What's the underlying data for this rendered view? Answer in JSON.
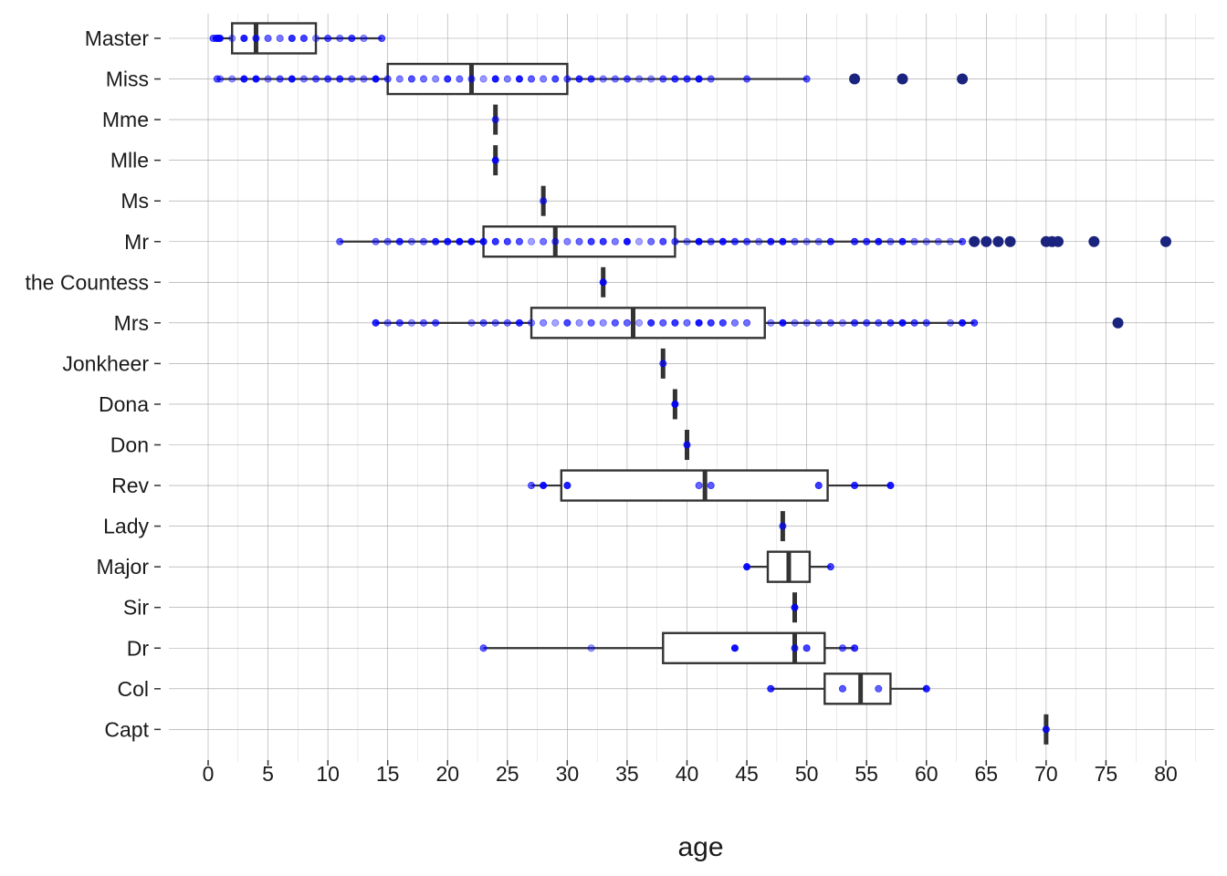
{
  "chart_data": {
    "type": "box",
    "orientation": "horizontal",
    "title": "",
    "xlabel": "age",
    "ylabel": "",
    "xlim": [
      0,
      80
    ],
    "xticks": [
      0,
      5,
      10,
      15,
      20,
      25,
      30,
      35,
      40,
      45,
      50,
      55,
      60,
      65,
      70,
      75,
      80
    ],
    "grid": true,
    "legend": "none",
    "colors": {
      "box": "#333333",
      "points": "#0000ff",
      "outliers": "#1a237e",
      "grid": "#9e9e9e"
    },
    "groups": [
      {
        "name": "Master",
        "q1": 2,
        "median": 4,
        "q3": 9,
        "whisker_low": 0.42,
        "whisker_high": 14.5,
        "points": [
          0.42,
          0.67,
          0.75,
          0.83,
          0.92,
          1,
          2,
          3,
          4,
          5,
          6,
          7,
          8,
          9,
          10,
          11,
          12,
          13,
          14.5
        ],
        "outliers": []
      },
      {
        "name": "Miss",
        "q1": 15,
        "median": 22,
        "q3": 30,
        "whisker_low": 0.75,
        "whisker_high": 50,
        "points": [
          0.75,
          1,
          2,
          3,
          4,
          5,
          6,
          7,
          8,
          9,
          10,
          11,
          12,
          13,
          14,
          15,
          16,
          17,
          18,
          19,
          20,
          21,
          22,
          23,
          24,
          25,
          26,
          27,
          28,
          29,
          30,
          31,
          32,
          33,
          34,
          35,
          36,
          37,
          38,
          39,
          40,
          41,
          42,
          45,
          50
        ],
        "outliers": [
          54,
          58,
          63
        ]
      },
      {
        "name": "Mme",
        "q1": 24,
        "median": 24,
        "q3": 24,
        "whisker_low": 24,
        "whisker_high": 24,
        "points": [
          24
        ],
        "outliers": []
      },
      {
        "name": "Mlle",
        "q1": 24,
        "median": 24,
        "q3": 24,
        "whisker_low": 24,
        "whisker_high": 24,
        "points": [
          24
        ],
        "outliers": []
      },
      {
        "name": "Ms",
        "q1": 28,
        "median": 28,
        "q3": 28,
        "whisker_low": 28,
        "whisker_high": 28,
        "points": [
          28
        ],
        "outliers": []
      },
      {
        "name": "Mr",
        "q1": 23,
        "median": 29,
        "q3": 39,
        "whisker_low": 11,
        "whisker_high": 63,
        "points": [
          11,
          14,
          15,
          16,
          17,
          18,
          19,
          20,
          21,
          22,
          23,
          24,
          25,
          26,
          27,
          28,
          29,
          30,
          31,
          32,
          33,
          34,
          35,
          36,
          37,
          38,
          39,
          40,
          41,
          42,
          43,
          44,
          45,
          46,
          47,
          48,
          49,
          50,
          51,
          52,
          54,
          55,
          56,
          57,
          58,
          59,
          60,
          61,
          62,
          63
        ],
        "outliers": [
          64,
          65,
          66,
          67,
          70,
          70.5,
          71,
          74,
          80
        ]
      },
      {
        "name": "the Countess",
        "q1": 33,
        "median": 33,
        "q3": 33,
        "whisker_low": 33,
        "whisker_high": 33,
        "points": [
          33
        ],
        "outliers": []
      },
      {
        "name": "Mrs",
        "q1": 27,
        "median": 35.5,
        "q3": 46.5,
        "whisker_low": 14,
        "whisker_high": 64,
        "points": [
          14,
          15,
          16,
          17,
          18,
          19,
          22,
          23,
          24,
          25,
          26,
          27,
          28,
          29,
          30,
          31,
          32,
          33,
          34,
          35,
          36,
          37,
          38,
          39,
          40,
          41,
          42,
          43,
          44,
          45,
          47,
          48,
          49,
          50,
          51,
          52,
          53,
          54,
          55,
          56,
          57,
          58,
          59,
          60,
          62,
          63,
          64
        ],
        "outliers": [
          76
        ]
      },
      {
        "name": "Jonkheer",
        "q1": 38,
        "median": 38,
        "q3": 38,
        "whisker_low": 38,
        "whisker_high": 38,
        "points": [
          38
        ],
        "outliers": []
      },
      {
        "name": "Dona",
        "q1": 39,
        "median": 39,
        "q3": 39,
        "whisker_low": 39,
        "whisker_high": 39,
        "points": [
          39
        ],
        "outliers": []
      },
      {
        "name": "Don",
        "q1": 40,
        "median": 40,
        "q3": 40,
        "whisker_low": 40,
        "whisker_high": 40,
        "points": [
          40
        ],
        "outliers": []
      },
      {
        "name": "Rev",
        "q1": 29.5,
        "median": 41.5,
        "q3": 51.75,
        "whisker_low": 27,
        "whisker_high": 57,
        "points": [
          27,
          28,
          30,
          41,
          42,
          51,
          54,
          57
        ],
        "outliers": []
      },
      {
        "name": "Lady",
        "q1": 48,
        "median": 48,
        "q3": 48,
        "whisker_low": 48,
        "whisker_high": 48,
        "points": [
          48
        ],
        "outliers": []
      },
      {
        "name": "Major",
        "q1": 46.75,
        "median": 48.5,
        "q3": 50.25,
        "whisker_low": 45,
        "whisker_high": 52,
        "points": [
          45,
          52
        ],
        "outliers": []
      },
      {
        "name": "Sir",
        "q1": 49,
        "median": 49,
        "q3": 49,
        "whisker_low": 49,
        "whisker_high": 49,
        "points": [
          49
        ],
        "outliers": []
      },
      {
        "name": "Dr",
        "q1": 38,
        "median": 49,
        "q3": 51.5,
        "whisker_low": 23,
        "whisker_high": 54,
        "points": [
          23,
          32,
          44,
          49,
          50,
          53,
          54
        ],
        "outliers": []
      },
      {
        "name": "Col",
        "q1": 51.5,
        "median": 54.5,
        "q3": 57,
        "whisker_low": 47,
        "whisker_high": 60,
        "points": [
          47,
          53,
          56,
          60
        ],
        "outliers": []
      },
      {
        "name": "Capt",
        "q1": 70,
        "median": 70,
        "q3": 70,
        "whisker_low": 70,
        "whisker_high": 70,
        "points": [
          70
        ],
        "outliers": []
      }
    ]
  }
}
